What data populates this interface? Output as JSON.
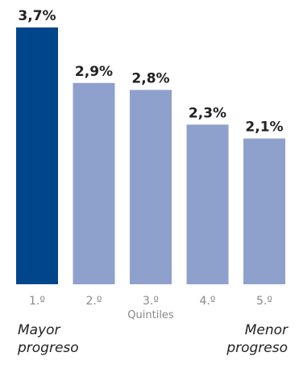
{
  "chart_data": {
    "type": "bar",
    "categories": [
      "1.º",
      "2.º",
      "3.º",
      "4.º",
      "5.º"
    ],
    "values": [
      3.7,
      2.9,
      2.8,
      2.3,
      2.1
    ],
    "value_labels": [
      "3,7%",
      "2,9%",
      "2,8%",
      "2,3%",
      "2,1%"
    ],
    "xlabel": "Quintiles",
    "ylabel": "",
    "ylim": [
      0,
      3.7
    ],
    "grid": false,
    "colors": [
      "#00468b",
      "#8ea0cc",
      "#8ea0cc",
      "#8ea0cc",
      "#8ea0cc"
    ],
    "annotations": {
      "left_line1": "Mayor",
      "left_line2": "progreso",
      "right_line1": "Menor",
      "right_line2": "progreso"
    }
  }
}
